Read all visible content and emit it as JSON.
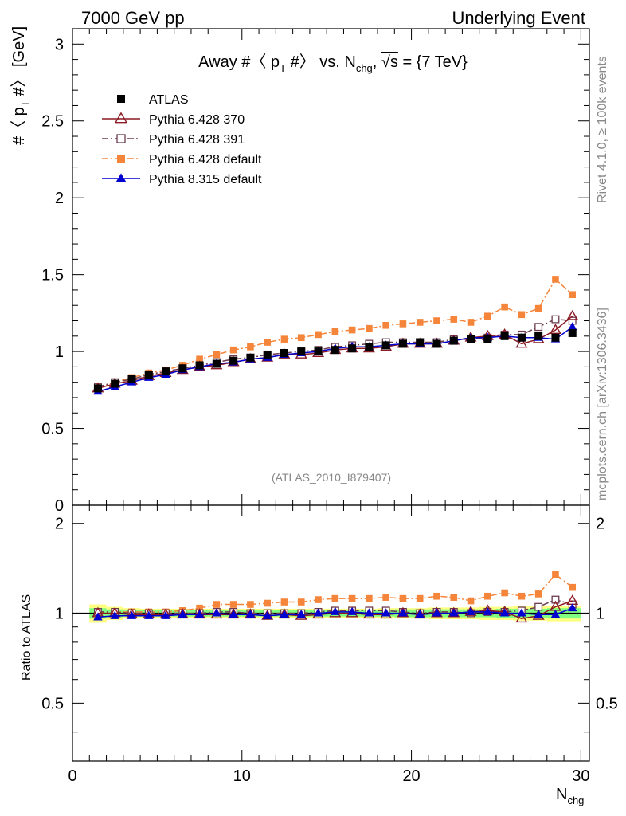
{
  "header": {
    "left": "7000 GeV pp",
    "right": "Underlying Event"
  },
  "side_labels": {
    "rivet": "Rivet 4.1.0, ≥ 100k events",
    "mcplots": "mcplots.cern.ch [arXiv:1306.3436]"
  },
  "chart_data": [
    {
      "type": "line",
      "title": "Away #〈 p_T #〉 vs. N_chg, √s = {7 TeV}",
      "title_parts": {
        "a": "Away #〈 p",
        "b": "T",
        "c": " #〉 vs. N",
        "d": "chg",
        "e": ", ",
        "f": "√s",
        "g": " = {7 TeV}"
      },
      "ylabel_parts": {
        "a": "#〈 p",
        "b": "T",
        "c": " #〉 [GeV]"
      },
      "xlabel_parts": {
        "a": "N",
        "b": "chg"
      },
      "watermark": "(ATLAS_2010_I879407)",
      "xlim": [
        0,
        30.5
      ],
      "ylim": [
        0,
        3.1
      ],
      "y_ticks": [
        0,
        0.5,
        1,
        1.5,
        2,
        2.5,
        3
      ],
      "y_tick_labels": [
        "0",
        "0.5",
        "1",
        "1.5",
        "2",
        "2.5",
        "3"
      ],
      "x": [
        1.5,
        2.5,
        3.5,
        4.5,
        5.5,
        6.5,
        7.5,
        8.5,
        9.5,
        10.5,
        11.5,
        12.5,
        13.5,
        14.5,
        15.5,
        16.5,
        17.5,
        18.5,
        19.5,
        20.5,
        21.5,
        22.5,
        23.5,
        24.5,
        25.5,
        26.5,
        27.5,
        28.5,
        29.5
      ],
      "legend_position": "top-left",
      "series": [
        {
          "name": "ATLAS",
          "color": "#000000",
          "marker": "square-filled",
          "line": "none",
          "values": [
            0.76,
            0.79,
            0.82,
            0.85,
            0.87,
            0.89,
            0.91,
            0.92,
            0.94,
            0.96,
            0.98,
            0.99,
            1.0,
            1.0,
            1.01,
            1.02,
            1.03,
            1.04,
            1.05,
            1.06,
            1.05,
            1.07,
            1.08,
            1.08,
            1.1,
            1.09,
            1.1,
            1.09,
            1.12
          ]
        },
        {
          "name": "Pythia 6.428 370",
          "color": "#8b1a24",
          "marker": "triangle-open",
          "line": "solid",
          "values": [
            0.76,
            0.79,
            0.81,
            0.84,
            0.86,
            0.88,
            0.9,
            0.91,
            0.93,
            0.95,
            0.96,
            0.98,
            0.98,
            0.99,
            1.01,
            1.02,
            1.02,
            1.03,
            1.05,
            1.05,
            1.05,
            1.07,
            1.09,
            1.1,
            1.11,
            1.05,
            1.08,
            1.14,
            1.23
          ]
        },
        {
          "name": "Pythia 6.428 391",
          "color": "#6b3a4e",
          "marker": "square-open",
          "line": "dashdot",
          "values": [
            0.77,
            0.8,
            0.82,
            0.85,
            0.87,
            0.89,
            0.91,
            0.93,
            0.95,
            0.96,
            0.98,
            0.99,
            1.0,
            1.01,
            1.03,
            1.04,
            1.05,
            1.06,
            1.06,
            1.06,
            1.06,
            1.08,
            1.08,
            1.09,
            1.11,
            1.11,
            1.16,
            1.21,
            1.2
          ]
        },
        {
          "name": "Pythia 6.428 default",
          "color": "#f5853a",
          "marker": "square-filled",
          "line": "dashdot",
          "values": [
            0.76,
            0.8,
            0.83,
            0.86,
            0.88,
            0.91,
            0.95,
            0.98,
            1.01,
            1.03,
            1.06,
            1.08,
            1.09,
            1.11,
            1.13,
            1.14,
            1.15,
            1.17,
            1.18,
            1.19,
            1.2,
            1.21,
            1.19,
            1.23,
            1.29,
            1.24,
            1.28,
            1.47,
            1.37
          ]
        },
        {
          "name": "Pythia 8.315 default",
          "color": "#0000d0",
          "marker": "triangle-filled",
          "line": "solid",
          "values": [
            0.74,
            0.77,
            0.8,
            0.83,
            0.85,
            0.88,
            0.9,
            0.92,
            0.93,
            0.95,
            0.96,
            0.98,
            0.99,
            1.0,
            1.02,
            1.03,
            1.03,
            1.04,
            1.05,
            1.05,
            1.05,
            1.07,
            1.09,
            1.09,
            1.1,
            1.09,
            1.09,
            1.08,
            1.16
          ]
        }
      ]
    },
    {
      "type": "line",
      "ylabel": "Ratio to ATLAS",
      "xlim": [
        0,
        30.5
      ],
      "ylim": [
        0.32,
        2.3
      ],
      "y_tick_labels_left": {
        "0.5": "0.5",
        "1": "1",
        "2": "2"
      },
      "y_tick_labels_right": {
        "0.5": "0.5",
        "1": "1",
        "2": "2"
      },
      "x_tick_labels": {
        "0": "0",
        "10": "10",
        "20": "20",
        "30": "30"
      },
      "band_green": [
        0.04,
        0.03,
        0.025,
        0.025,
        0.025,
        0.025,
        0.025,
        0.025,
        0.025,
        0.025,
        0.025,
        0.025,
        0.025,
        0.025,
        0.025,
        0.025,
        0.025,
        0.025,
        0.03,
        0.03,
        0.03,
        0.03,
        0.03,
        0.03,
        0.035,
        0.035,
        0.035,
        0.04,
        0.04
      ],
      "band_yellow": [
        0.07,
        0.05,
        0.04,
        0.035,
        0.035,
        0.035,
        0.035,
        0.035,
        0.035,
        0.035,
        0.035,
        0.035,
        0.035,
        0.035,
        0.035,
        0.035,
        0.035,
        0.04,
        0.04,
        0.04,
        0.045,
        0.045,
        0.045,
        0.05,
        0.05,
        0.055,
        0.055,
        0.06,
        0.06
      ],
      "series": [
        {
          "name": "Pythia 6.428 370",
          "values": [
            1.0,
            1.0,
            0.99,
            0.99,
            0.99,
            0.99,
            0.99,
            0.99,
            0.99,
            0.99,
            0.98,
            0.99,
            0.98,
            0.99,
            1.0,
            1.0,
            0.99,
            0.99,
            1.0,
            0.99,
            1.0,
            1.0,
            1.01,
            1.02,
            1.01,
            0.96,
            0.98,
            1.05,
            1.1
          ]
        },
        {
          "name": "Pythia 6.428 391",
          "values": [
            1.01,
            1.01,
            1.0,
            1.0,
            1.0,
            1.0,
            1.0,
            1.01,
            1.01,
            1.0,
            1.0,
            1.0,
            1.0,
            1.01,
            1.02,
            1.02,
            1.02,
            1.02,
            1.01,
            1.0,
            1.01,
            1.01,
            1.0,
            1.01,
            1.01,
            1.02,
            1.05,
            1.11,
            1.07
          ]
        },
        {
          "name": "Pythia 6.428 default",
          "values": [
            1.0,
            1.01,
            1.01,
            1.01,
            1.01,
            1.02,
            1.04,
            1.07,
            1.07,
            1.07,
            1.08,
            1.09,
            1.09,
            1.11,
            1.12,
            1.12,
            1.12,
            1.13,
            1.12,
            1.12,
            1.14,
            1.13,
            1.1,
            1.14,
            1.17,
            1.14,
            1.16,
            1.35,
            1.22
          ]
        },
        {
          "name": "Pythia 8.315 default",
          "values": [
            0.97,
            0.98,
            0.98,
            0.98,
            0.98,
            0.99,
            0.99,
            1.0,
            0.99,
            0.99,
            0.98,
            0.99,
            0.99,
            1.0,
            1.01,
            1.01,
            1.0,
            1.0,
            1.0,
            0.99,
            1.0,
            1.0,
            1.01,
            1.01,
            1.0,
            1.0,
            0.99,
            0.99,
            1.04
          ]
        }
      ]
    }
  ]
}
